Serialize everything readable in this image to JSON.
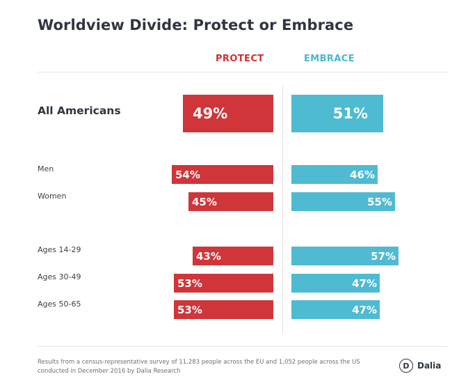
{
  "chart_data": {
    "type": "bar",
    "title": "Worldview Divide: Protect or Embrace",
    "series": [
      {
        "name": "PROTECT",
        "values": [
          49,
          54,
          45,
          43,
          53,
          53
        ],
        "labels": [
          "49%",
          "54%",
          "45%",
          "43%",
          "53%",
          "53%"
        ]
      },
      {
        "name": "EMBRACE",
        "values": [
          51,
          46,
          55,
          57,
          47,
          47
        ],
        "labels": [
          "51%",
          "46%",
          "55%",
          "57%",
          "47%",
          "47%"
        ]
      }
    ],
    "categories": [
      "All Americans",
      "Men",
      "Women",
      "Ages 14-29",
      "Ages 30-49",
      "Ages 50-65"
    ],
    "xlim": [
      0,
      100
    ],
    "grid": false,
    "colors": {
      "protect": "#d03539",
      "embrace": "#4ebbd2"
    }
  },
  "footnote": "Results from a census-representative survey of 11,283 people across the EU and 1,052 people across the US conducted in December 2016 by Dalia Research",
  "logo": {
    "mark": "D",
    "name": "Dalia"
  }
}
